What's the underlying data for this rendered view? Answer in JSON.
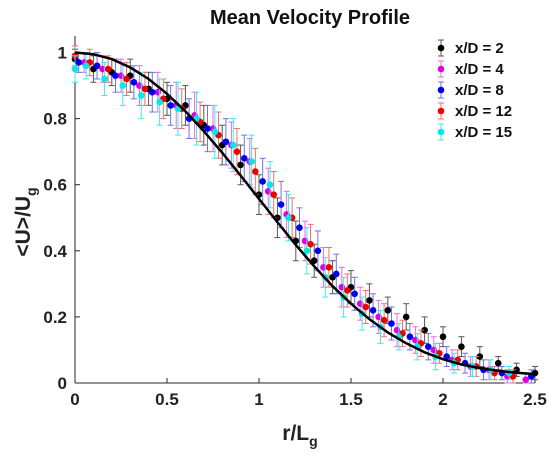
{
  "chart_data": {
    "type": "scatter",
    "title": "Mean Velocity Profile",
    "xlabel": {
      "main": "r/L",
      "sub": "g"
    },
    "ylabel": {
      "main": "<U>/U",
      "sub": "g"
    },
    "xlim": [
      0,
      2.5
    ],
    "ylim": [
      0,
      1.05
    ],
    "xticks": [
      "0",
      "0.5",
      "1",
      "1.5",
      "2",
      "2.5"
    ],
    "xtick_values": [
      0,
      0.5,
      1,
      1.5,
      2,
      2.5
    ],
    "yticks": [
      "0",
      "0.2",
      "0.4",
      "0.6",
      "0.8",
      "1"
    ],
    "ytick_values": [
      0,
      0.2,
      0.4,
      0.6,
      0.8,
      1
    ],
    "grid": false,
    "legend_position": "top-right",
    "series": [
      {
        "name": "x/D = 2",
        "color": "#000000",
        "error_color": "#555555",
        "x": [
          0.0,
          0.1,
          0.2,
          0.3,
          0.4,
          0.5,
          0.6,
          0.7,
          0.8,
          0.9,
          1.0,
          1.1,
          1.2,
          1.3,
          1.4,
          1.5,
          1.6,
          1.7,
          1.8,
          1.9,
          2.0,
          2.1,
          2.2,
          2.3,
          2.4,
          2.5
        ],
        "y": [
          0.98,
          0.95,
          0.94,
          0.93,
          0.89,
          0.86,
          0.84,
          0.78,
          0.72,
          0.66,
          0.57,
          0.5,
          0.43,
          0.37,
          0.32,
          0.29,
          0.25,
          0.22,
          0.2,
          0.16,
          0.14,
          0.11,
          0.08,
          0.06,
          0.04,
          0.03
        ],
        "err": [
          0.03,
          0.04,
          0.04,
          0.05,
          0.05,
          0.05,
          0.06,
          0.06,
          0.06,
          0.06,
          0.06,
          0.06,
          0.06,
          0.05,
          0.05,
          0.05,
          0.05,
          0.04,
          0.04,
          0.04,
          0.03,
          0.03,
          0.03,
          0.02,
          0.02,
          0.02
        ]
      },
      {
        "name": "x/D = 4",
        "color": "#e000e0",
        "error_color": "#e070e0",
        "x": [
          0.05,
          0.15,
          0.25,
          0.35,
          0.45,
          0.55,
          0.65,
          0.75,
          0.85,
          0.95,
          1.05,
          1.15,
          1.25,
          1.35,
          1.45,
          1.55,
          1.65,
          1.75,
          1.85,
          1.95,
          2.05,
          2.15,
          2.25,
          2.35,
          2.45
        ],
        "y": [
          0.97,
          0.95,
          0.93,
          0.9,
          0.88,
          0.84,
          0.81,
          0.77,
          0.72,
          0.67,
          0.58,
          0.51,
          0.43,
          0.35,
          0.29,
          0.24,
          0.2,
          0.16,
          0.13,
          0.1,
          0.07,
          0.05,
          0.04,
          0.02,
          0.01
        ],
        "err": [
          0.03,
          0.04,
          0.05,
          0.06,
          0.06,
          0.07,
          0.07,
          0.07,
          0.07,
          0.07,
          0.07,
          0.07,
          0.06,
          0.06,
          0.06,
          0.05,
          0.05,
          0.05,
          0.04,
          0.04,
          0.03,
          0.03,
          0.03,
          0.02,
          0.02
        ]
      },
      {
        "name": "x/D = 8",
        "color": "#0000ee",
        "error_color": "#7070ee",
        "x": [
          0.02,
          0.12,
          0.22,
          0.32,
          0.42,
          0.52,
          0.62,
          0.72,
          0.82,
          0.92,
          1.02,
          1.12,
          1.22,
          1.32,
          1.42,
          1.52,
          1.62,
          1.72,
          1.82,
          1.92,
          2.02,
          2.12,
          2.22,
          2.32,
          2.48
        ],
        "y": [
          0.97,
          0.96,
          0.93,
          0.91,
          0.88,
          0.84,
          0.8,
          0.77,
          0.73,
          0.68,
          0.61,
          0.54,
          0.47,
          0.4,
          0.33,
          0.27,
          0.22,
          0.18,
          0.14,
          0.11,
          0.08,
          0.06,
          0.04,
          0.03,
          0.02
        ],
        "err": [
          0.03,
          0.04,
          0.05,
          0.05,
          0.06,
          0.06,
          0.06,
          0.07,
          0.07,
          0.07,
          0.07,
          0.07,
          0.06,
          0.06,
          0.06,
          0.05,
          0.05,
          0.05,
          0.04,
          0.04,
          0.03,
          0.03,
          0.03,
          0.02,
          0.02
        ]
      },
      {
        "name": "x/D = 12",
        "color": "#ee0000",
        "error_color": "#ee7070",
        "x": [
          0.0,
          0.08,
          0.18,
          0.28,
          0.38,
          0.48,
          0.58,
          0.68,
          0.78,
          0.88,
          0.98,
          1.08,
          1.18,
          1.28,
          1.38,
          1.48,
          1.58,
          1.68,
          1.78,
          1.88,
          1.98,
          2.08,
          2.18,
          2.28,
          2.38
        ],
        "y": [
          0.99,
          0.97,
          0.95,
          0.92,
          0.89,
          0.86,
          0.83,
          0.79,
          0.75,
          0.7,
          0.64,
          0.57,
          0.5,
          0.42,
          0.35,
          0.28,
          0.23,
          0.19,
          0.15,
          0.12,
          0.09,
          0.07,
          0.05,
          0.03,
          0.02
        ],
        "err": [
          0.03,
          0.04,
          0.04,
          0.05,
          0.05,
          0.06,
          0.06,
          0.06,
          0.07,
          0.07,
          0.07,
          0.07,
          0.06,
          0.06,
          0.06,
          0.05,
          0.05,
          0.05,
          0.04,
          0.04,
          0.03,
          0.03,
          0.03,
          0.02,
          0.02
        ]
      },
      {
        "name": "x/D = 15",
        "color": "#00e8e8",
        "error_color": "#40eaea",
        "x": [
          0.0,
          0.06,
          0.16,
          0.26,
          0.36,
          0.46,
          0.56,
          0.66,
          0.76,
          0.86,
          0.96,
          1.06,
          1.16,
          1.26,
          1.36,
          1.46,
          1.56,
          1.66,
          1.76,
          1.86,
          1.96,
          2.06,
          2.16,
          2.26,
          2.36
        ],
        "y": [
          0.95,
          0.96,
          0.92,
          0.9,
          0.87,
          0.85,
          0.83,
          0.8,
          0.76,
          0.72,
          0.67,
          0.6,
          0.5,
          0.4,
          0.32,
          0.26,
          0.21,
          0.17,
          0.14,
          0.11,
          0.08,
          0.06,
          0.05,
          0.04,
          0.03
        ],
        "err": [
          0.04,
          0.04,
          0.05,
          0.06,
          0.07,
          0.07,
          0.08,
          0.08,
          0.08,
          0.08,
          0.08,
          0.07,
          0.07,
          0.07,
          0.06,
          0.06,
          0.05,
          0.05,
          0.04,
          0.04,
          0.04,
          0.03,
          0.03,
          0.03,
          0.02
        ]
      }
    ],
    "fit_curve": {
      "color": "#000000",
      "x": [
        0,
        0.1,
        0.2,
        0.3,
        0.4,
        0.5,
        0.6,
        0.7,
        0.8,
        0.9,
        1.0,
        1.1,
        1.2,
        1.3,
        1.4,
        1.5,
        1.6,
        1.7,
        1.8,
        1.9,
        2.0,
        2.1,
        2.2,
        2.3,
        2.4,
        2.5
      ],
      "y": [
        1.0,
        0.995,
        0.98,
        0.955,
        0.92,
        0.875,
        0.822,
        0.762,
        0.697,
        0.628,
        0.557,
        0.487,
        0.418,
        0.353,
        0.293,
        0.24,
        0.193,
        0.153,
        0.12,
        0.093,
        0.072,
        0.056,
        0.045,
        0.037,
        0.031,
        0.027
      ]
    }
  }
}
